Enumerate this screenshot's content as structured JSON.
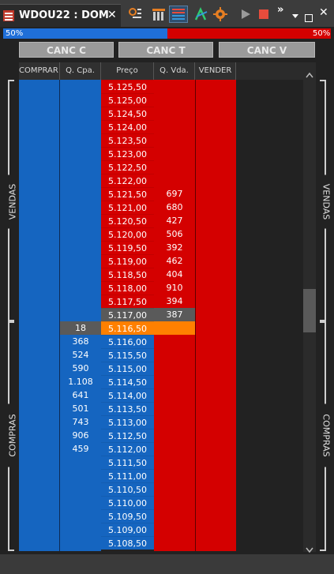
{
  "window": {
    "title": "WDOU22 : DOM",
    "close_tab": "✕",
    "toolbar_icons": [
      "tool-settings-icon",
      "columns-icon",
      "book-grid-icon",
      "font-style-icon",
      "gear-icon",
      "play-icon",
      "stop-icon",
      "overflow-icon",
      "dropdown-icon",
      "maximize-icon",
      "close-icon"
    ]
  },
  "balance": {
    "buy_pct": "50%",
    "sell_pct": "50%",
    "buy_fraction": 0.5,
    "colors": {
      "buy": "#1f6fd8",
      "sell": "#d40000"
    }
  },
  "cancel": {
    "c": "CANC C",
    "t": "CANC T",
    "v": "CANC V"
  },
  "headers": {
    "comprar": "COMPRAR",
    "qcpa": "Q. Cpa.",
    "preco": "Preço",
    "qvda": "Q. Vda.",
    "vender": "VENDER"
  },
  "sides": {
    "vendas": "VENDAS",
    "compras": "COMPRAS"
  },
  "prices": [
    "5.125,50",
    "5.125,00",
    "5.124,50",
    "5.124,00",
    "5.123,50",
    "5.123,00",
    "5.122,50",
    "5.122,00",
    "5.121,50",
    "5.121,00",
    "5.120,50",
    "5.120,00",
    "5.119,50",
    "5.119,00",
    "5.118,50",
    "5.118,00",
    "5.117,50",
    "5.117,00",
    "5.116,50",
    "5.116,00",
    "5.115,50",
    "5.115,00",
    "5.114,50",
    "5.114,00",
    "5.113,50",
    "5.113,00",
    "5.112,50",
    "5.112,00",
    "5.111,50",
    "5.111,00",
    "5.110,50",
    "5.110,00",
    "5.109,50",
    "5.109,00",
    "5.108,50"
  ],
  "qvda": [
    "",
    "",
    "",
    "",
    "",
    "",
    "",
    "",
    "697",
    "680",
    "427",
    "506",
    "392",
    "462",
    "404",
    "910",
    "394",
    "387",
    "",
    "",
    "",
    "",
    "",
    "",
    "",
    "",
    "",
    "",
    "",
    "",
    "",
    "",
    "",
    "",
    ""
  ],
  "qcpa": [
    "",
    "",
    "",
    "",
    "",
    "",
    "",
    "",
    "",
    "",
    "",
    "",
    "",
    "",
    "",
    "",
    "",
    "",
    "18",
    "368",
    "524",
    "590",
    "1.108",
    "641",
    "501",
    "743",
    "906",
    "459",
    "",
    "",
    "",
    "",
    "",
    "",
    ""
  ],
  "colors": {
    "ask": "#d40000",
    "bid": "#1565c0",
    "current_price": "#ff8000",
    "neutral": "#5a5a5a"
  },
  "special_rows": {
    "last_ask_index": 17,
    "current_index": 18
  }
}
